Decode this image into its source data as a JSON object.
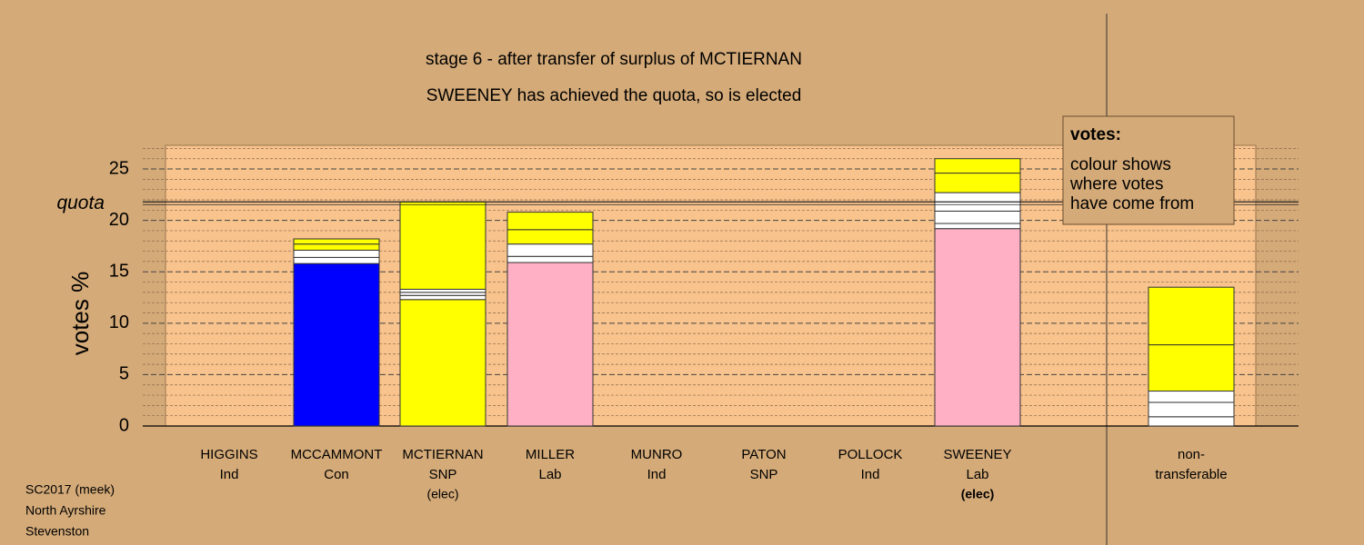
{
  "chart_data": {
    "type": "stacked_bar",
    "title_lines": [
      "stage 6 - after transfer of surplus of MCTIERNAN",
      "SWEENEY has achieved the quota, so is elected"
    ],
    "y_label": "votes %",
    "ylim": [
      0,
      27.3
    ],
    "yticks": [
      0,
      5,
      10,
      15,
      20,
      25
    ],
    "yminorticks": [
      1,
      2,
      3,
      4,
      6,
      7,
      8,
      9,
      11,
      12,
      13,
      14,
      16,
      17,
      18,
      19,
      21,
      22,
      23,
      24,
      26,
      27
    ],
    "grid": true,
    "quota": {
      "value": 21.8,
      "label": "quota"
    },
    "bars": [
      {
        "lines": [
          "HIGGINS",
          "Ind"
        ],
        "segments": []
      },
      {
        "lines": [
          "MCCAMMONT",
          "Con"
        ],
        "segments": [
          {
            "value": 15.8,
            "color": "#0000ff"
          },
          {
            "value": 0.6,
            "color": "#ffffff"
          },
          {
            "value": 0.7,
            "color": "#ffffff"
          },
          {
            "value": 0.6,
            "color": "#ffff00"
          },
          {
            "value": 0.5,
            "color": "#ffff00"
          }
        ]
      },
      {
        "lines": [
          "MCTIERNAN",
          "SNP",
          "(elec)"
        ],
        "segments": [
          {
            "value": 12.3,
            "color": "#ffff00"
          },
          {
            "value": 0.4,
            "color": "#ffffff"
          },
          {
            "value": 0.3,
            "color": "#ffffff"
          },
          {
            "value": 0.3,
            "color": "#ffffff"
          },
          {
            "value": 8.5,
            "color": "#ffff00"
          }
        ]
      },
      {
        "lines": [
          "MILLER",
          "Lab"
        ],
        "segments": [
          {
            "value": 15.9,
            "color": "#ffb0c4"
          },
          {
            "value": 0.6,
            "color": "#ffffff"
          },
          {
            "value": 1.2,
            "color": "#ffffff"
          },
          {
            "value": 1.4,
            "color": "#ffff00"
          },
          {
            "value": 1.7,
            "color": "#ffff00"
          }
        ]
      },
      {
        "lines": [
          "MUNRO",
          "Ind"
        ],
        "segments": []
      },
      {
        "lines": [
          "PATON",
          "SNP"
        ],
        "segments": []
      },
      {
        "lines": [
          "POLLOCK",
          "Ind"
        ],
        "segments": []
      },
      {
        "lines": [
          "SWEENEY",
          "Lab",
          "(elec)"
        ],
        "bold_third_line": true,
        "segments": [
          {
            "value": 19.2,
            "color": "#ffb0c4"
          },
          {
            "value": 0.5,
            "color": "#ffffff"
          },
          {
            "value": 1.2,
            "color": "#ffffff"
          },
          {
            "value": 1.8,
            "color": "#ffffff"
          },
          {
            "value": 1.9,
            "color": "#ffff00"
          },
          {
            "value": 1.4,
            "color": "#ffff00"
          }
        ]
      },
      {
        "lines": [
          "non-",
          "transferable"
        ],
        "separate": true,
        "segments": [
          {
            "value": 0.9,
            "color": "#ffffff"
          },
          {
            "value": 1.4,
            "color": "#ffffff"
          },
          {
            "value": 1.1,
            "color": "#ffffff"
          },
          {
            "value": 4.5,
            "color": "#ffff00"
          },
          {
            "value": 5.6,
            "color": "#ffff00"
          }
        ]
      }
    ],
    "legend": {
      "heading": "votes:",
      "lines": [
        "colour shows",
        "where votes",
        "have come from"
      ]
    },
    "footer": [
      "SC2017 (meek)",
      "North Ayrshire",
      "Stevenston"
    ]
  }
}
